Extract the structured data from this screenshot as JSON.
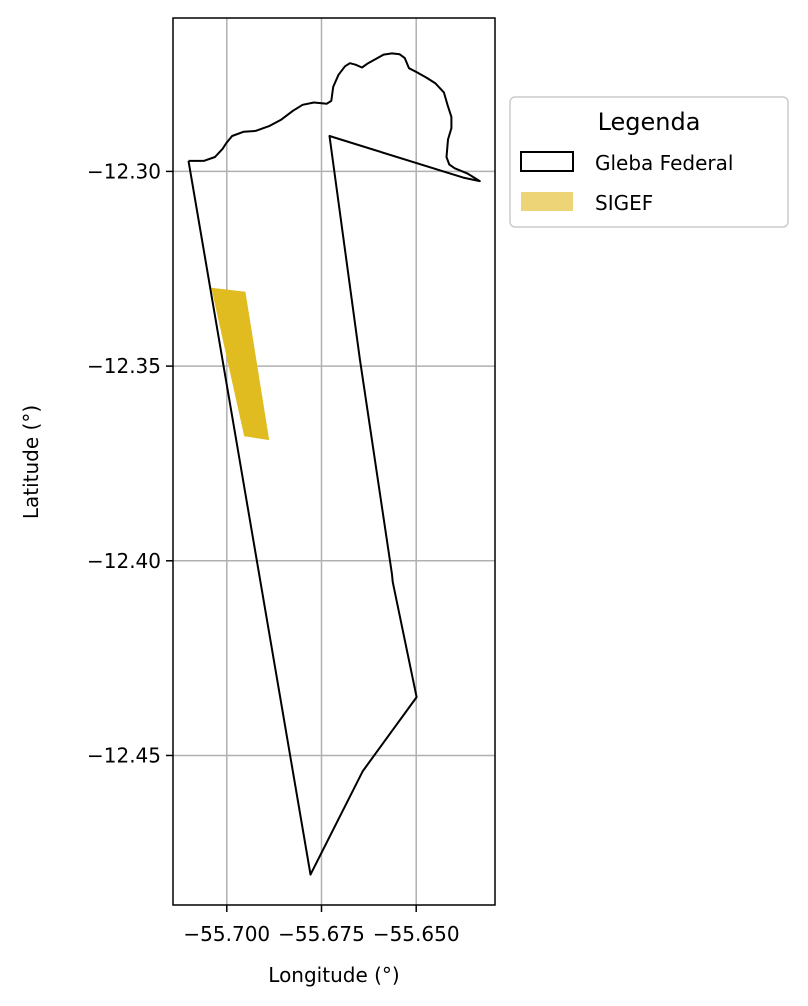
{
  "chart_data": {
    "type": "map",
    "xlabel": "Longitude (°)",
    "ylabel": "Latitude (°)",
    "xlim": [
      -55.7142,
      -55.6292
    ],
    "ylim": [
      -12.4884,
      -12.2606
    ],
    "xticks": [
      -55.7,
      -55.675,
      -55.65
    ],
    "xtick_labels": [
      "−55.700",
      "−55.675",
      "−55.650"
    ],
    "yticks": [
      -12.3,
      -12.35,
      -12.4,
      -12.45
    ],
    "ytick_labels": [
      "−12.30",
      "−12.35",
      "−12.40",
      "−12.45"
    ],
    "grid": true,
    "legend": {
      "title": "Legenda",
      "placement": "outside-upper-right",
      "entries": [
        {
          "label": "Gleba Federal",
          "style": "outline",
          "color": "#000000"
        },
        {
          "label": "SIGEF",
          "style": "fill",
          "color": "#EDD477"
        }
      ]
    },
    "layers": {
      "gleba_federal": {
        "name": "Gleba Federal",
        "stroke": "#000000",
        "coordinates": [
          [
            -55.7101,
            -12.2973
          ],
          [
            -55.7061,
            -12.2973
          ],
          [
            -55.7031,
            -12.2963
          ],
          [
            -55.7011,
            -12.2942
          ],
          [
            -55.7001,
            -12.2927
          ],
          [
            -55.6986,
            -12.2909
          ],
          [
            -55.6955,
            -12.2898
          ],
          [
            -55.6924,
            -12.2896
          ],
          [
            -55.6887,
            -12.2883
          ],
          [
            -55.6856,
            -12.2867
          ],
          [
            -55.6825,
            -12.2844
          ],
          [
            -55.68,
            -12.2829
          ],
          [
            -55.677,
            -12.2823
          ],
          [
            -55.6736,
            -12.2826
          ],
          [
            -55.6724,
            -12.2819
          ],
          [
            -55.6719,
            -12.2783
          ],
          [
            -55.6705,
            -12.2752
          ],
          [
            -55.6688,
            -12.273
          ],
          [
            -55.6675,
            -12.2722
          ],
          [
            -55.666,
            -12.2726
          ],
          [
            -55.6643,
            -12.2733
          ],
          [
            -55.6627,
            -12.2722
          ],
          [
            -55.6606,
            -12.2711
          ],
          [
            -55.6586,
            -12.27
          ],
          [
            -55.6564,
            -12.2697
          ],
          [
            -55.6544,
            -12.2699
          ],
          [
            -55.653,
            -12.2709
          ],
          [
            -55.6519,
            -12.2735
          ],
          [
            -55.6499,
            -12.2745
          ],
          [
            -55.6473,
            -12.2759
          ],
          [
            -55.6449,
            -12.2774
          ],
          [
            -55.6427,
            -12.2797
          ],
          [
            -55.6417,
            -12.283
          ],
          [
            -55.6407,
            -12.286
          ],
          [
            -55.6407,
            -12.2889
          ],
          [
            -55.6416,
            -12.2918
          ],
          [
            -55.642,
            -12.2963
          ],
          [
            -55.6413,
            -12.2982
          ],
          [
            -55.6398,
            -12.2992
          ],
          [
            -55.6365,
            -12.3005
          ],
          [
            -55.6332,
            -12.3025
          ],
          [
            -55.6376,
            -12.3016
          ],
          [
            -55.6729,
            -12.2909
          ],
          [
            -55.6649,
            -12.3481
          ],
          [
            -55.6564,
            -12.4035
          ],
          [
            -55.6562,
            -12.4054
          ],
          [
            -55.6499,
            -12.435
          ],
          [
            -55.6641,
            -12.454
          ],
          [
            -55.6779,
            -12.4806
          ],
          [
            -55.7101,
            -12.2973
          ]
        ]
      },
      "sigef": {
        "name": "SIGEF",
        "fill": "#E0BC20",
        "coordinates": [
          [
            -55.7041,
            -12.3299
          ],
          [
            -55.6951,
            -12.3309
          ],
          [
            -55.6888,
            -12.369
          ],
          [
            -55.6954,
            -12.368
          ],
          [
            -55.7041,
            -12.3299
          ]
        ]
      }
    }
  }
}
